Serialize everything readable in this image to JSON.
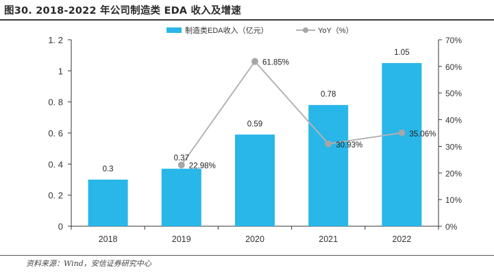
{
  "figure_title": "图30. 2018-2022 年公司制造类 EDA 收入及增速",
  "source": "资料来源：Wind，安信证券研究中心",
  "colors": {
    "bar": "#29B6E8",
    "line": "#B3B3B3",
    "marker": "#A6A6A6",
    "axis": "#333333"
  },
  "chart_data": {
    "type": "bar+line",
    "categories": [
      "2018",
      "2019",
      "2020",
      "2021",
      "2022"
    ],
    "series": [
      {
        "name": "制造类EDA收入（亿元）",
        "type": "bar",
        "axis": "left",
        "values": [
          0.3,
          0.37,
          0.59,
          0.78,
          1.05
        ],
        "labels": [
          "0.3",
          "0.37",
          "0.59",
          "0.78",
          "1.05"
        ]
      },
      {
        "name": "YoY（%）",
        "type": "line",
        "axis": "right",
        "values": [
          null,
          22.98,
          61.85,
          30.93,
          35.06
        ],
        "labels": [
          "",
          "22.98%",
          "61.85%",
          "30.93%",
          "35.06%"
        ]
      }
    ],
    "y_left": {
      "range": [
        0,
        1.2
      ],
      "ticks": [
        0,
        0.2,
        0.4,
        0.6,
        0.8,
        1,
        1.2
      ],
      "tick_labels": [
        "0",
        "0. 2",
        "0. 4",
        "0. 6",
        "0. 8",
        "1",
        "1. 2"
      ]
    },
    "y_right": {
      "range": [
        0,
        70
      ],
      "ticks": [
        0,
        10,
        20,
        30,
        40,
        50,
        60,
        70
      ],
      "tick_labels": [
        "0%",
        "10%",
        "20%",
        "30%",
        "40%",
        "50%",
        "60%",
        "70%"
      ]
    },
    "grid": false,
    "legend_position": "top-center"
  }
}
